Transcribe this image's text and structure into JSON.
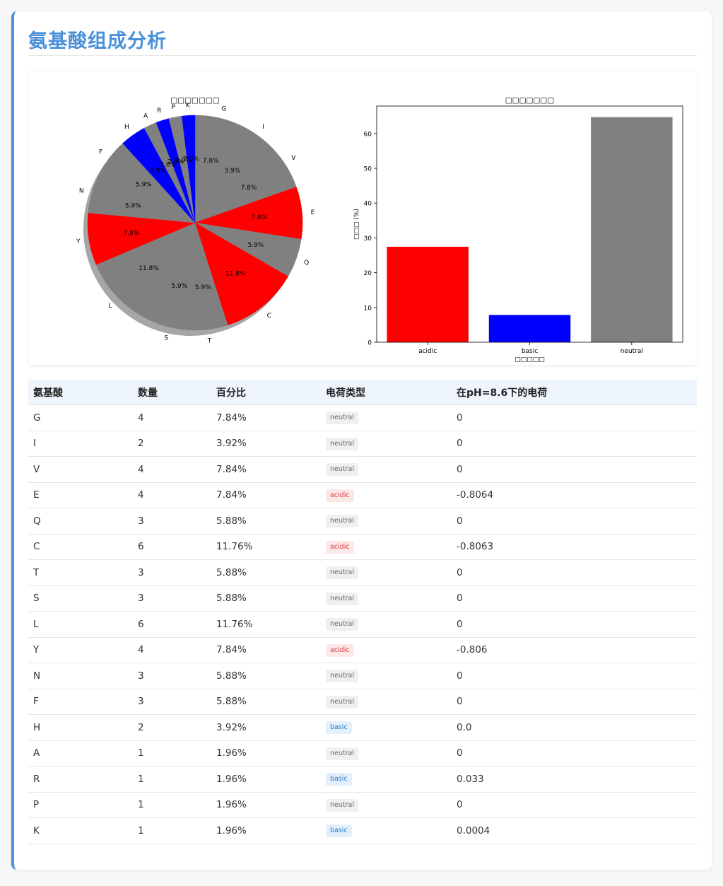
{
  "page": {
    "title": "氨基酸组成分析"
  },
  "colors": {
    "acidic": "#ff0000",
    "basic": "#0000ff",
    "neutral": "#808080",
    "accent": "#4a90d9"
  },
  "chart_data": [
    {
      "type": "pie",
      "title": "□□□□□□□",
      "categories": [
        "G",
        "I",
        "V",
        "E",
        "Q",
        "C",
        "T",
        "S",
        "L",
        "Y",
        "N",
        "F",
        "H",
        "A",
        "R",
        "P",
        "K"
      ],
      "values": [
        7.84,
        3.92,
        7.84,
        7.84,
        5.88,
        11.76,
        5.88,
        5.88,
        11.76,
        7.84,
        5.88,
        5.88,
        3.92,
        1.96,
        1.96,
        1.96,
        1.96
      ],
      "pct_labels": [
        "7.8%",
        "3.9%",
        "7.8%",
        "7.8%",
        "5.9%",
        "11.8%",
        "5.9%",
        "5.9%",
        "11.8%",
        "7.8%",
        "5.9%",
        "5.9%",
        "3.9%",
        "2.0%",
        "2.0%",
        "2.0%",
        "2.0%"
      ],
      "slice_colors": [
        "neutral",
        "neutral",
        "neutral",
        "acidic",
        "neutral",
        "acidic",
        "neutral",
        "neutral",
        "neutral",
        "acidic",
        "neutral",
        "neutral",
        "basic",
        "neutral",
        "basic",
        "neutral",
        "basic"
      ],
      "start_angle_deg": 90,
      "direction": "clockwise",
      "shadow": true
    },
    {
      "type": "bar",
      "title": "□□□□□□□",
      "categories": [
        "acidic",
        "basic",
        "neutral"
      ],
      "values": [
        27.45,
        7.84,
        64.71
      ],
      "xlabel": "□□□□□",
      "ylabel": "□□□ (%)",
      "ylim": [
        0,
        67.9
      ],
      "yticks": [
        0,
        10,
        20,
        30,
        40,
        50,
        60
      ],
      "bar_colors": [
        "acidic",
        "basic",
        "neutral"
      ]
    }
  ],
  "table": {
    "headers": [
      "氨基酸",
      "数量",
      "百分比",
      "电荷类型",
      "在pH=8.6下的电荷"
    ],
    "rows": [
      {
        "aa": "G",
        "count": "4",
        "pct": "7.84%",
        "type": "neutral",
        "charge": "0"
      },
      {
        "aa": "I",
        "count": "2",
        "pct": "3.92%",
        "type": "neutral",
        "charge": "0"
      },
      {
        "aa": "V",
        "count": "4",
        "pct": "7.84%",
        "type": "neutral",
        "charge": "0"
      },
      {
        "aa": "E",
        "count": "4",
        "pct": "7.84%",
        "type": "acidic",
        "charge": "-0.8064"
      },
      {
        "aa": "Q",
        "count": "3",
        "pct": "5.88%",
        "type": "neutral",
        "charge": "0"
      },
      {
        "aa": "C",
        "count": "6",
        "pct": "11.76%",
        "type": "acidic",
        "charge": "-0.8063"
      },
      {
        "aa": "T",
        "count": "3",
        "pct": "5.88%",
        "type": "neutral",
        "charge": "0"
      },
      {
        "aa": "S",
        "count": "3",
        "pct": "5.88%",
        "type": "neutral",
        "charge": "0"
      },
      {
        "aa": "L",
        "count": "6",
        "pct": "11.76%",
        "type": "neutral",
        "charge": "0"
      },
      {
        "aa": "Y",
        "count": "4",
        "pct": "7.84%",
        "type": "acidic",
        "charge": "-0.806"
      },
      {
        "aa": "N",
        "count": "3",
        "pct": "5.88%",
        "type": "neutral",
        "charge": "0"
      },
      {
        "aa": "F",
        "count": "3",
        "pct": "5.88%",
        "type": "neutral",
        "charge": "0"
      },
      {
        "aa": "H",
        "count": "2",
        "pct": "3.92%",
        "type": "basic",
        "charge": "0.0"
      },
      {
        "aa": "A",
        "count": "1",
        "pct": "1.96%",
        "type": "neutral",
        "charge": "0"
      },
      {
        "aa": "R",
        "count": "1",
        "pct": "1.96%",
        "type": "basic",
        "charge": "0.033"
      },
      {
        "aa": "P",
        "count": "1",
        "pct": "1.96%",
        "type": "neutral",
        "charge": "0"
      },
      {
        "aa": "K",
        "count": "1",
        "pct": "1.96%",
        "type": "basic",
        "charge": "0.0004"
      }
    ]
  }
}
